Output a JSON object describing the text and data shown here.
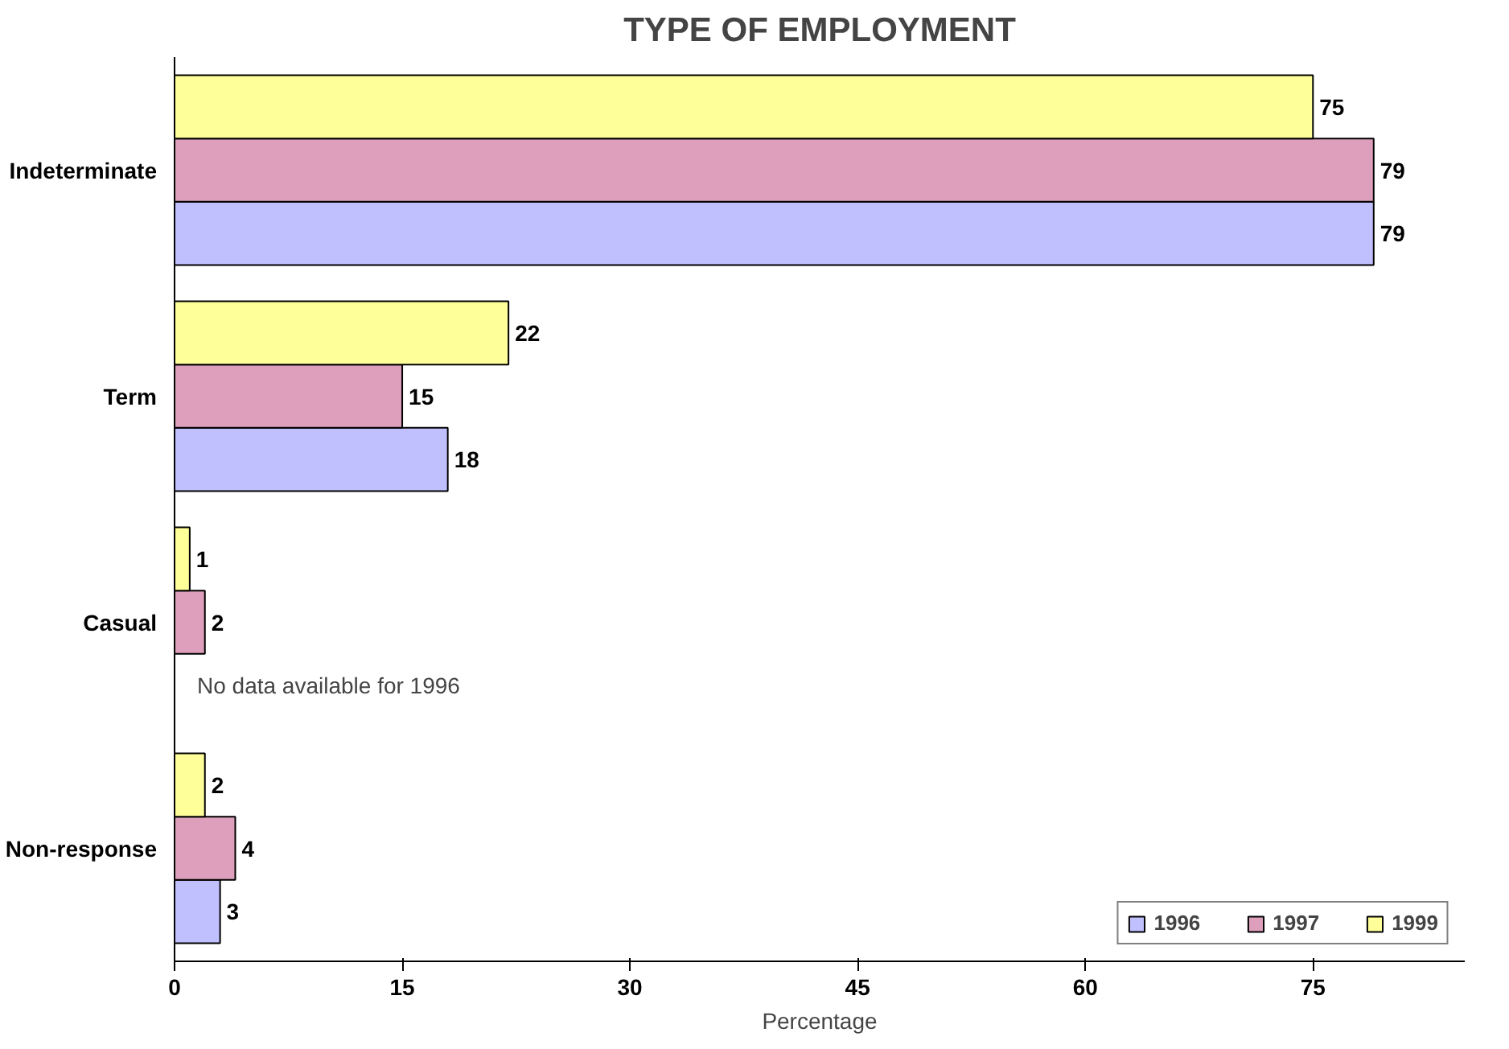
{
  "chart_data": {
    "type": "bar",
    "orientation": "horizontal",
    "title": "TYPE OF EMPLOYMENT",
    "xlabel": "Percentage",
    "categories": [
      "Indeterminate",
      "Term",
      "Casual",
      "Non-response"
    ],
    "series": [
      {
        "name": "1996",
        "color": "#c0c0ff",
        "values": [
          79,
          18,
          null,
          3
        ]
      },
      {
        "name": "1997",
        "color": "#dd9fbb",
        "values": [
          79,
          15,
          2,
          4
        ]
      },
      {
        "name": "1999",
        "color": "#ffff99",
        "values": [
          75,
          22,
          1,
          2
        ]
      }
    ],
    "xlim": [
      0,
      85
    ],
    "xticks": [
      0,
      15,
      30,
      45,
      60,
      75
    ],
    "data_labels": true,
    "grid": false,
    "legend": "bottom right",
    "annotations": [
      {
        "text": "No data available for 1996",
        "x": 0,
        "y": "Casual"
      }
    ]
  }
}
